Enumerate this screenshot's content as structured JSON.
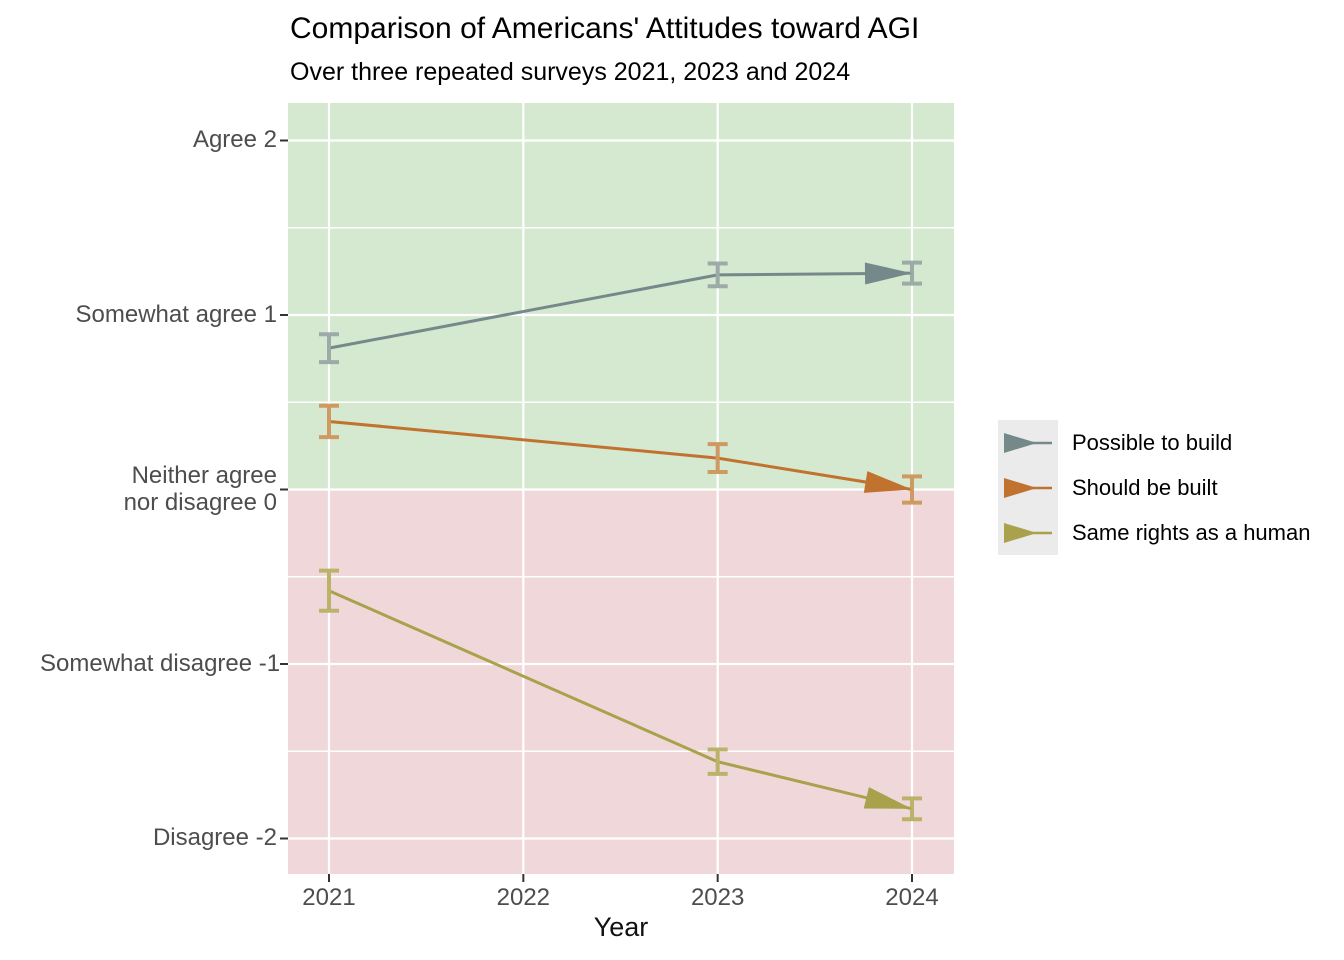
{
  "chart_data": {
    "type": "line",
    "title": "Comparison of Americans' Attitudes toward AGI",
    "subtitle": "Over three repeated surveys 2021, 2023 and 2024",
    "xlabel": "Year",
    "xlim": [
      2020.79,
      2024.21
    ],
    "ylim": [
      -2.21,
      2.21
    ],
    "x_ticks": [
      2021,
      2022,
      2023,
      2024
    ],
    "y_ticks": [
      {
        "value": 2,
        "lines": [
          "Agree 2"
        ]
      },
      {
        "value": 1,
        "lines": [
          "Somewhat agree 1"
        ]
      },
      {
        "value": 0,
        "lines": [
          "Neither agree",
          "nor disagree 0"
        ]
      },
      {
        "value": -1,
        "lines": [
          "Somewhat disagree -1"
        ]
      },
      {
        "value": -2,
        "lines": [
          "Disagree -2"
        ]
      }
    ],
    "minor_gridlines_y": [
      1.5,
      0.5,
      -0.5,
      -1.5
    ],
    "grid_on": true,
    "grid_color": "#ffffff",
    "axis_text_color": "#4d4d4d",
    "tick_mark_color": "#333333",
    "bands": {
      "boundary_value": 0,
      "positive_color": "#d5e8d0",
      "negative_color": "#f0d7da"
    },
    "legend": {
      "position": "right",
      "key_background": "#ebebeb"
    },
    "series": [
      {
        "name": "Possible to build",
        "color": "#76898a",
        "error_color": "#9caba8",
        "x": [
          2021,
          2023,
          2024
        ],
        "y": [
          0.81,
          1.23,
          1.24
        ],
        "err": [
          0.08,
          0.065,
          0.06
        ]
      },
      {
        "name": "Should be built",
        "color": "#c2722f",
        "error_color": "#cf9a62",
        "x": [
          2021,
          2023,
          2024
        ],
        "y": [
          0.39,
          0.18,
          0.0
        ],
        "err": [
          0.09,
          0.08,
          0.075
        ]
      },
      {
        "name": "Same rights as a human",
        "color": "#a9a14b",
        "error_color": "#bcb36a",
        "x": [
          2021,
          2023,
          2024
        ],
        "y": [
          -0.58,
          -1.56,
          -1.83
        ],
        "err": [
          0.115,
          0.07,
          0.06
        ]
      }
    ]
  }
}
